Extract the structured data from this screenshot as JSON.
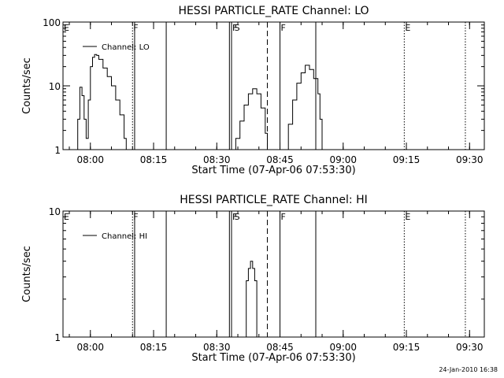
{
  "footer": {
    "timestamp": "24-Jan-2010 16:38"
  },
  "chart_data": [
    {
      "type": "line",
      "title": "HESSI PARTICLE_RATE Channel: LO",
      "xlabel": "Start Time (07-Apr-06 07:53:30)",
      "ylabel": "Counts/sec",
      "yscale": "log",
      "ylim": [
        1,
        100
      ],
      "xlim": [
        "07:53:30",
        "09:33:30"
      ],
      "xticks": [
        "08:00",
        "08:15",
        "08:30",
        "08:45",
        "09:00",
        "09:15",
        "09:30"
      ],
      "yticks": [
        "1",
        "10",
        "100"
      ],
      "legend": {
        "label": "Channel: LO",
        "position": "top-left"
      },
      "grid": false,
      "markers": [
        {
          "time": "07:53:30",
          "label": "E",
          "style": "none"
        },
        {
          "time": "08:10:00",
          "label": "F",
          "style": "dotted"
        },
        {
          "time": "08:10:30",
          "label": "",
          "style": "solid"
        },
        {
          "time": "08:18:00",
          "label": "",
          "style": "solid"
        },
        {
          "time": "08:33:00",
          "label": "",
          "style": "solid"
        },
        {
          "time": "08:33:30",
          "label": "F",
          "style": "solid"
        },
        {
          "time": "08:34:00",
          "label": "S",
          "style": "none"
        },
        {
          "time": "08:42:00",
          "label": "",
          "style": "dashed"
        },
        {
          "time": "08:45:00",
          "label": "F",
          "style": "solid"
        },
        {
          "time": "08:53:30",
          "label": "",
          "style": "solid"
        },
        {
          "time": "09:14:30",
          "label": "E",
          "style": "dotted"
        },
        {
          "time": "09:29:00",
          "label": "",
          "style": "dotted"
        }
      ],
      "series": [
        {
          "name": "Channel: LO",
          "segments": [
            [
              [
                "07:56:30",
                1
              ],
              [
                "07:57:00",
                3
              ],
              [
                "07:57:30",
                9.5
              ],
              [
                "07:58:00",
                7
              ],
              [
                "07:58:30",
                3
              ],
              [
                "07:59:00",
                1.5
              ],
              [
                "07:59:30",
                6
              ],
              [
                "08:00:00",
                20
              ],
              [
                "08:00:30",
                28
              ],
              [
                "08:01:00",
                31
              ],
              [
                "08:01:30",
                30
              ],
              [
                "08:02:00",
                26
              ],
              [
                "08:03:00",
                19
              ],
              [
                "08:04:00",
                14
              ],
              [
                "08:05:00",
                10
              ],
              [
                "08:06:00",
                6
              ],
              [
                "08:07:00",
                3.5
              ],
              [
                "08:08:00",
                1.5
              ],
              [
                "08:08:30",
                1
              ]
            ],
            [
              [
                "08:33:30",
                1
              ],
              [
                "08:34:30",
                1.5
              ],
              [
                "08:35:30",
                2.8
              ],
              [
                "08:36:30",
                5
              ],
              [
                "08:37:30",
                7.5
              ],
              [
                "08:38:30",
                9
              ],
              [
                "08:39:30",
                7.5
              ],
              [
                "08:40:30",
                4.5
              ],
              [
                "08:41:30",
                1.8
              ],
              [
                "08:42:00",
                1
              ]
            ],
            [
              [
                "08:46:00",
                1
              ],
              [
                "08:47:00",
                2.5
              ],
              [
                "08:48:00",
                6
              ],
              [
                "08:49:00",
                11
              ],
              [
                "08:50:00",
                16
              ],
              [
                "08:51:00",
                21
              ],
              [
                "08:52:00",
                18
              ],
              [
                "08:53:00",
                13
              ],
              [
                "08:54:00",
                7.5
              ],
              [
                "08:54:30",
                3
              ],
              [
                "08:55:00",
                1
              ]
            ]
          ]
        }
      ]
    },
    {
      "type": "line",
      "title": "HESSI PARTICLE_RATE Channel: HI",
      "xlabel": "Start Time (07-Apr-06 07:53:30)",
      "ylabel": "Counts/sec",
      "yscale": "log",
      "ylim": [
        1,
        10
      ],
      "xlim": [
        "07:53:30",
        "09:33:30"
      ],
      "xticks": [
        "08:00",
        "08:15",
        "08:30",
        "08:45",
        "09:00",
        "09:15",
        "09:30"
      ],
      "yticks": [
        "1",
        "10"
      ],
      "legend": {
        "label": "Channel: HI",
        "position": "top-left"
      },
      "grid": false,
      "markers": [
        {
          "time": "07:53:30",
          "label": "E",
          "style": "none"
        },
        {
          "time": "08:10:00",
          "label": "F",
          "style": "dotted"
        },
        {
          "time": "08:10:30",
          "label": "",
          "style": "solid"
        },
        {
          "time": "08:18:00",
          "label": "",
          "style": "solid"
        },
        {
          "time": "08:33:00",
          "label": "",
          "style": "solid"
        },
        {
          "time": "08:33:30",
          "label": "F",
          "style": "solid"
        },
        {
          "time": "08:34:00",
          "label": "S",
          "style": "none"
        },
        {
          "time": "08:42:00",
          "label": "",
          "style": "dashed"
        },
        {
          "time": "08:45:00",
          "label": "F",
          "style": "solid"
        },
        {
          "time": "08:53:30",
          "label": "",
          "style": "solid"
        },
        {
          "time": "09:14:30",
          "label": "E",
          "style": "dotted"
        },
        {
          "time": "09:29:00",
          "label": "",
          "style": "dotted"
        }
      ],
      "series": [
        {
          "name": "Channel: HI",
          "segments": [
            [
              [
                "08:36:30",
                1
              ],
              [
                "08:37:00",
                2.8
              ],
              [
                "08:37:30",
                3.5
              ],
              [
                "08:38:00",
                4
              ],
              [
                "08:38:30",
                3.5
              ],
              [
                "08:39:00",
                2.8
              ],
              [
                "08:39:30",
                1
              ]
            ]
          ]
        }
      ]
    }
  ]
}
